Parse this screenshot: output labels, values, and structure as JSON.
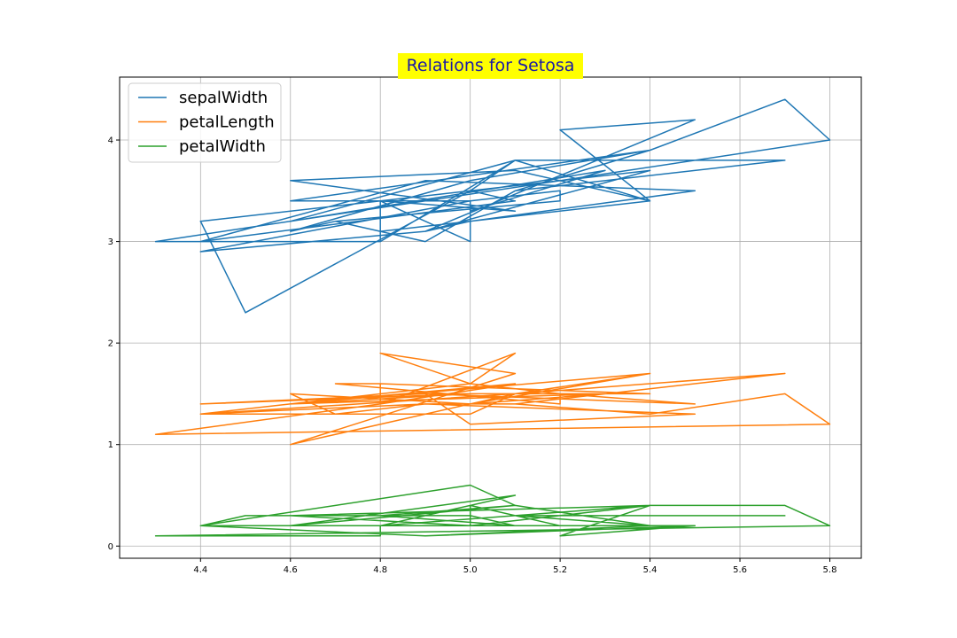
{
  "chart_data": {
    "type": "line",
    "title": "Relations for Setosa",
    "xlabel": "",
    "ylabel": "",
    "xlim": [
      4.22,
      5.87
    ],
    "ylim": [
      -0.12,
      4.62
    ],
    "xticks": [
      "4.4",
      "4.6",
      "4.8",
      "5.0",
      "5.2",
      "5.4",
      "5.6",
      "5.8"
    ],
    "yticks": [
      "0",
      "1",
      "2",
      "3",
      "4"
    ],
    "grid": true,
    "legend_position": "upper-left",
    "title_style": {
      "background": "#ffff00",
      "color": "#1a1aa6"
    },
    "x": [
      5.1,
      4.9,
      4.7,
      4.6,
      5.0,
      5.4,
      4.6,
      5.0,
      4.4,
      4.9,
      5.4,
      4.8,
      4.8,
      4.3,
      5.8,
      5.7,
      5.4,
      5.1,
      5.7,
      5.1,
      5.4,
      5.1,
      4.6,
      5.1,
      4.8,
      5.0,
      5.0,
      5.2,
      5.2,
      4.7,
      4.8,
      5.4,
      5.2,
      5.5,
      4.9,
      5.0,
      5.5,
      4.9,
      4.4,
      5.1,
      5.0,
      4.5,
      4.4,
      5.0,
      5.1,
      4.8,
      5.1,
      4.6,
      5.3,
      5.0
    ],
    "series": [
      {
        "name": "sepalWidth",
        "color": "#1f77b4",
        "values": [
          3.5,
          3.0,
          3.2,
          3.1,
          3.6,
          3.9,
          3.4,
          3.4,
          2.9,
          3.1,
          3.7,
          3.4,
          3.0,
          3.0,
          4.0,
          4.4,
          3.9,
          3.5,
          3.8,
          3.8,
          3.4,
          3.7,
          3.6,
          3.3,
          3.4,
          3.0,
          3.4,
          3.5,
          3.4,
          3.2,
          3.1,
          3.4,
          4.1,
          4.2,
          3.1,
          3.2,
          3.5,
          3.6,
          3.0,
          3.4,
          3.5,
          2.3,
          3.2,
          3.5,
          3.8,
          3.0,
          3.8,
          3.2,
          3.7,
          3.3
        ]
      },
      {
        "name": "petalLength",
        "color": "#ff7f0e",
        "values": [
          1.4,
          1.4,
          1.3,
          1.5,
          1.4,
          1.7,
          1.4,
          1.5,
          1.4,
          1.5,
          1.5,
          1.6,
          1.4,
          1.1,
          1.2,
          1.5,
          1.3,
          1.4,
          1.7,
          1.5,
          1.7,
          1.5,
          1.0,
          1.7,
          1.9,
          1.6,
          1.6,
          1.5,
          1.4,
          1.6,
          1.6,
          1.5,
          1.5,
          1.4,
          1.5,
          1.2,
          1.3,
          1.4,
          1.3,
          1.5,
          1.3,
          1.3,
          1.3,
          1.6,
          1.9,
          1.4,
          1.6,
          1.4,
          1.5,
          1.4
        ]
      },
      {
        "name": "petalWidth",
        "color": "#2ca02c",
        "values": [
          0.2,
          0.2,
          0.2,
          0.2,
          0.2,
          0.4,
          0.3,
          0.2,
          0.2,
          0.1,
          0.2,
          0.2,
          0.1,
          0.1,
          0.2,
          0.4,
          0.4,
          0.3,
          0.3,
          0.3,
          0.2,
          0.4,
          0.2,
          0.5,
          0.2,
          0.2,
          0.4,
          0.2,
          0.2,
          0.2,
          0.2,
          0.4,
          0.1,
          0.2,
          0.2,
          0.2,
          0.2,
          0.1,
          0.2,
          0.2,
          0.3,
          0.3,
          0.2,
          0.6,
          0.4,
          0.3,
          0.2,
          0.2,
          0.2,
          0.2
        ]
      }
    ]
  }
}
